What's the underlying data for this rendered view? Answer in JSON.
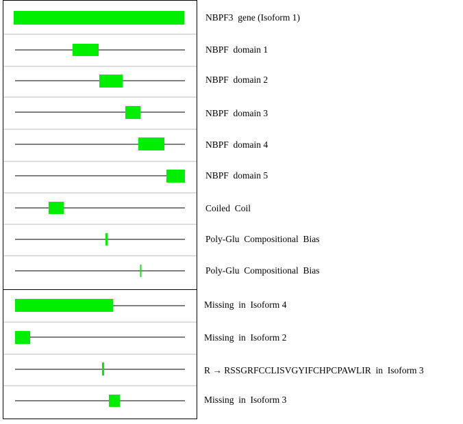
{
  "features": [
    {
      "label": "NBPF3  gene (Isoform 1)"
    },
    {
      "label": "NBPF  domain 1"
    },
    {
      "label": "NBPF  domain 2"
    },
    {
      "label": "NBPF  domain 3"
    },
    {
      "label": "NBPF  domain 4"
    },
    {
      "label": "NBPF  domain 5"
    },
    {
      "label": "Coiled  Coil"
    },
    {
      "label": "Poly-Glu  Compositional  Bias"
    },
    {
      "label": "Poly-Glu  Compositional  Bias"
    },
    {
      "label": "Missing  in  Isoform 4"
    },
    {
      "label": "Missing  in  Isoform 2"
    },
    {
      "label": "R → RSSGRFCCLISVGYIFCHPCPAWLIR  in  Isoform 3"
    },
    {
      "label": "Missing  in  Isoform 3"
    }
  ]
}
